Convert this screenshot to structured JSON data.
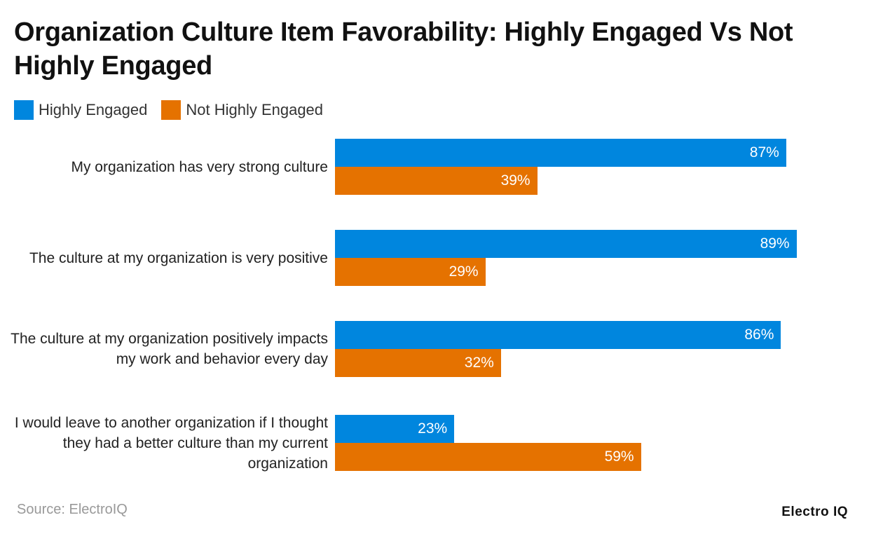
{
  "chart_data": {
    "type": "bar",
    "orientation": "horizontal",
    "title": "Organization Culture Item Favorability: Highly Engaged Vs Not Highly Engaged",
    "categories": [
      "My organization has very strong culture",
      "The culture at my organization is very positive",
      "The culture at my organization positively impacts my work and behavior every day",
      "I would leave to another organization if I thought they had a better culture than my current organization"
    ],
    "series": [
      {
        "name": "Highly Engaged",
        "color": "#0086DE",
        "values": [
          87,
          89,
          86,
          23
        ]
      },
      {
        "name": "Not Highly Engaged",
        "color": "#E57200",
        "values": [
          39,
          29,
          32,
          59
        ]
      }
    ],
    "value_suffix": "%",
    "xlim": [
      0,
      100
    ],
    "grid": false,
    "legend_position": "top-left"
  },
  "footer": {
    "source": "Source: ElectroIQ",
    "logo": "Electro IQ"
  }
}
